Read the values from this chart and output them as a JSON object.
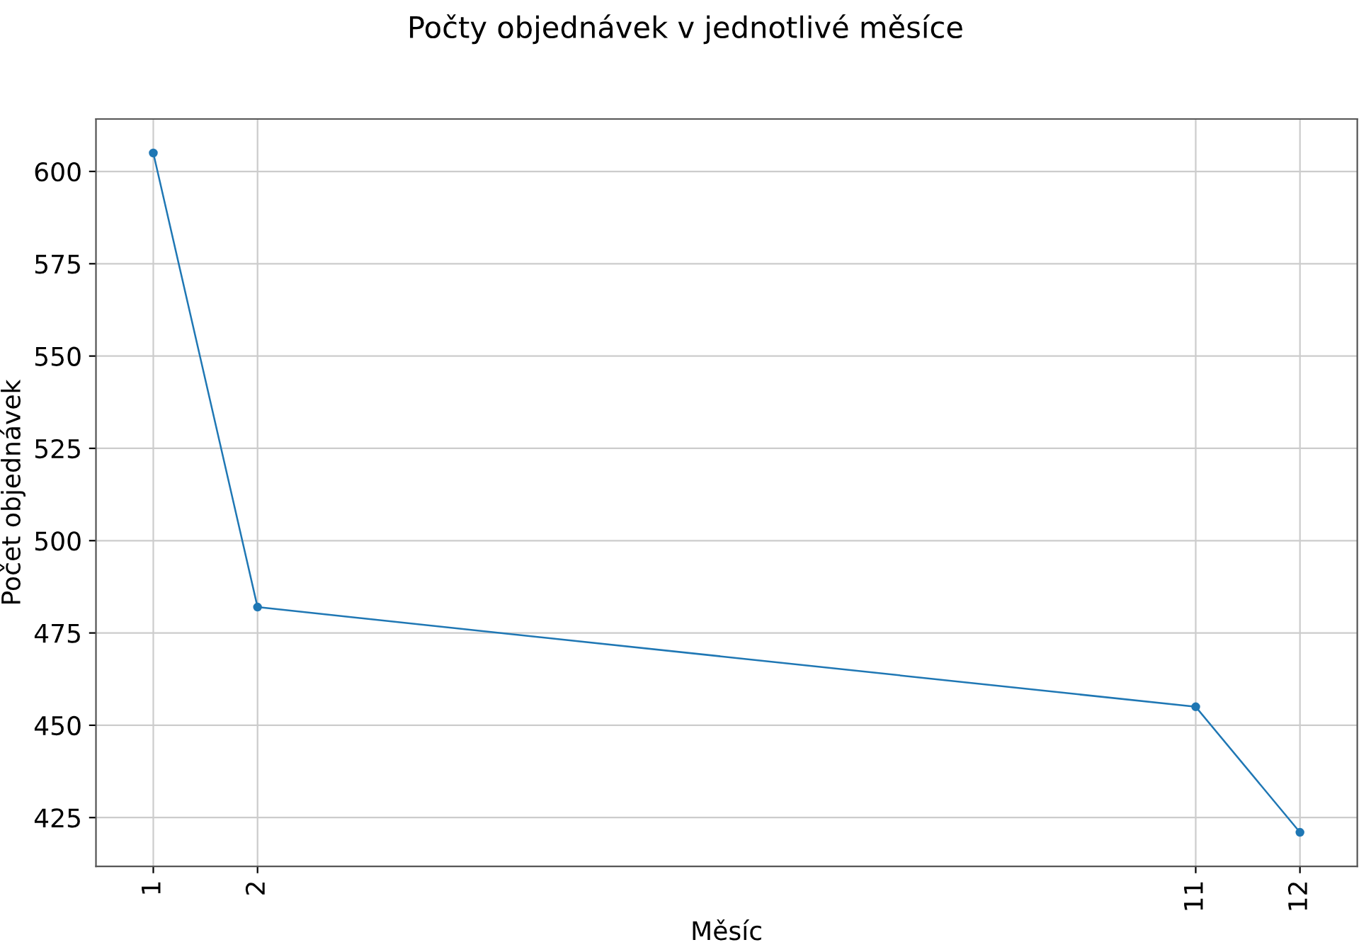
{
  "chart_data": {
    "type": "line",
    "title": "Počty objednávek v jednotlivé měsíce",
    "xlabel": "Měsíc",
    "ylabel": "Počet objednávek",
    "x": [
      1,
      2,
      11,
      12
    ],
    "series": [
      {
        "color": "#1f77b4",
        "values": [
          605,
          482,
          455,
          421
        ]
      }
    ],
    "xlim": [
      0.45,
      12.55
    ],
    "xticks": [
      1,
      2,
      11,
      12
    ],
    "ylim": [
      411.8,
      614.2
    ],
    "yticks": [
      425,
      450,
      475,
      500,
      525,
      550,
      575,
      600
    ],
    "grid": true,
    "marker": "circle",
    "line_style": "solid"
  }
}
